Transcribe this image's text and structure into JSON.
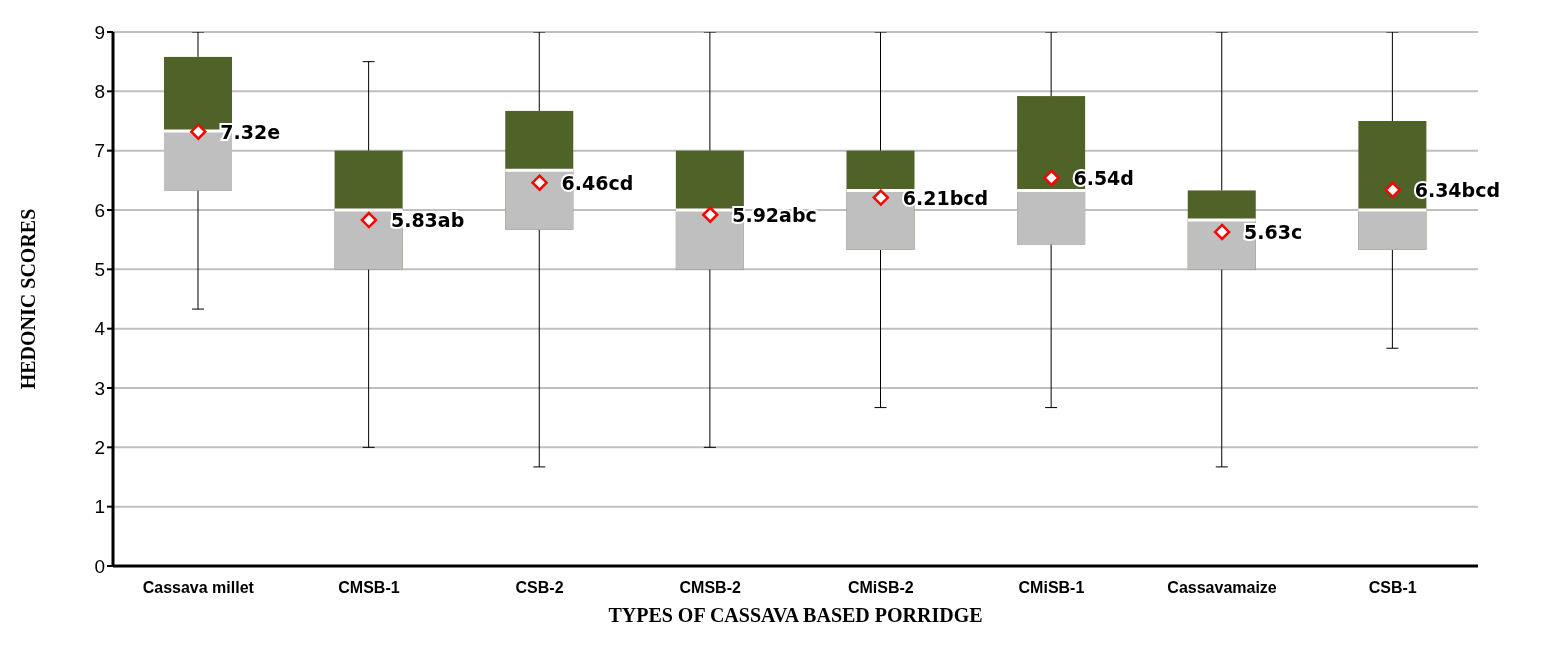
{
  "chart_data": {
    "type": "box",
    "xlabel": "TYPES  OF CASSAVA BASED PORRIDGE",
    "ylabel": "HEDONIC SCORES",
    "categories": [
      "Cassava millet",
      "CMSB-1",
      "CSB-2",
      "CMSB-2",
      "CMiSB-2",
      "CMiSB-1",
      "Cassavamaize",
      "CSB-1"
    ],
    "series": [
      {
        "color": "#4f6228",
        "boxes": [
          {
            "low": 4.33,
            "q1": 6.33,
            "median": 7.33,
            "q3": 8.58,
            "high": 9,
            "mean": 7.32
          },
          {
            "low": 2,
            "q1": 5,
            "median": 6,
            "q3": 7,
            "high": 8.5,
            "mean": 5.83
          },
          {
            "low": 1.67,
            "q1": 5.67,
            "median": 6.67,
            "q3": 7.67,
            "high": 9,
            "mean": 6.46
          },
          {
            "low": 2,
            "q1": 5,
            "median": 6,
            "q3": 7,
            "high": 9,
            "mean": 5.92
          },
          {
            "low": 2.67,
            "q1": 5.33,
            "median": 6.33,
            "q3": 7,
            "high": 9,
            "mean": 6.21
          },
          {
            "low": 2.67,
            "q1": 5.42,
            "median": 6.33,
            "q3": 7.92,
            "high": 9,
            "mean": 6.54
          },
          {
            "low": 1.67,
            "q1": 5,
            "median": 5.83,
            "q3": 6.33,
            "high": 9,
            "mean": 5.63
          },
          {
            "low": 3.67,
            "q1": 5.33,
            "median": 6,
            "q3": 7.5,
            "high": 9,
            "mean": 6.34
          }
        ]
      }
    ],
    "marker": "diamond",
    "annotations": [
      "7.32e",
      "5.83ab",
      "6.46cd",
      "5.92abc",
      "6.21bcd",
      "6.54d",
      "5.63c",
      "6.34bcd"
    ],
    "ylim": [
      0,
      9
    ],
    "yticks": [
      0,
      1,
      2,
      3,
      4,
      5,
      6,
      7,
      8,
      9
    ],
    "grid": "y"
  }
}
